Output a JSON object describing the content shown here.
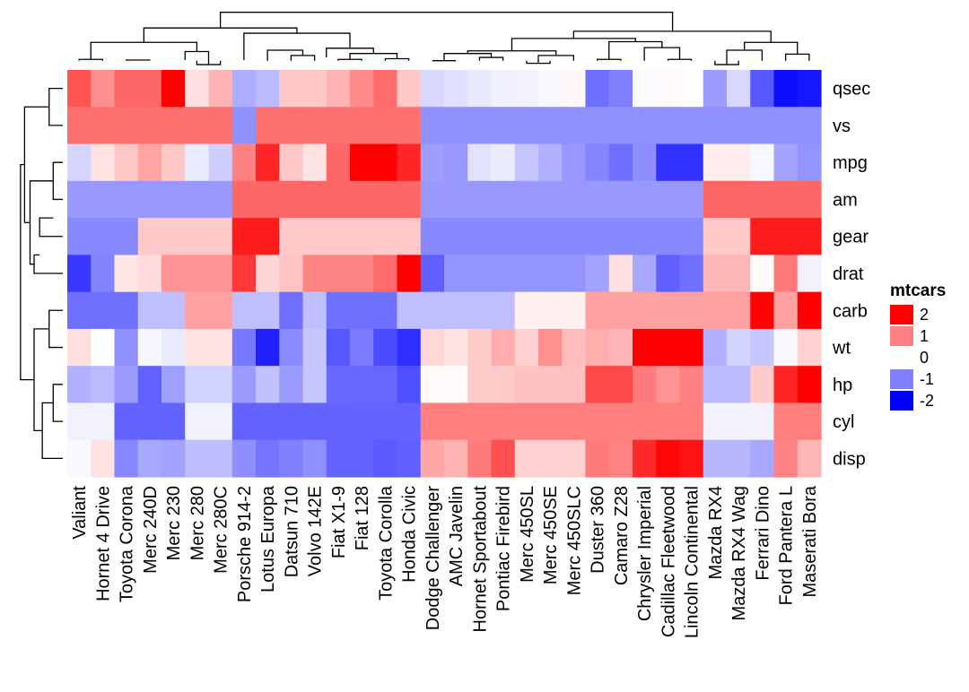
{
  "chart_data": {
    "type": "heatmap",
    "title": "",
    "legend": {
      "title": "mtcars",
      "placement": "right",
      "ticks": [
        2,
        1,
        0,
        -1,
        -2
      ],
      "tick_labels": [
        "2",
        "1",
        "0",
        "-1",
        "-2"
      ],
      "color_low": "#0000ff",
      "color_mid": "#ffffff",
      "color_high": "#ff0000",
      "range": [
        -2,
        2
      ]
    },
    "x_categories": [
      "Valiant",
      "Hornet 4 Drive",
      "Toyota Corona",
      "Merc 240D",
      "Merc 230",
      "Merc 280",
      "Merc 280C",
      "Porsche 914-2",
      "Lotus Europa",
      "Datsun 710",
      "Volvo 142E",
      "Fiat X1-9",
      "Fiat 128",
      "Toyota Corolla",
      "Honda Civic",
      "Dodge Challenger",
      "AMC Javelin",
      "Hornet Sportabout",
      "Pontiac Firebird",
      "Merc 450SL",
      "Merc 450SE",
      "Merc 450SLC",
      "Duster 360",
      "Camaro Z28",
      "Chrysler Imperial",
      "Cadillac Fleetwood",
      "Lincoln Continental",
      "Mazda RX4",
      "Mazda RX4 Wag",
      "Ferrari Dino",
      "Ford Pantera L",
      "Maserati Bora"
    ],
    "y_categories": [
      "qsec",
      "vs",
      "mpg",
      "am",
      "gear",
      "drat",
      "carb",
      "wt",
      "hp",
      "cyl",
      "disp"
    ],
    "values": [
      [
        1.33,
        0.89,
        1.2,
        1.2,
        2.83,
        0.25,
        0.59,
        -0.64,
        -0.53,
        0.43,
        0.43,
        0.59,
        0.91,
        1.15,
        0.43,
        -0.31,
        -0.25,
        -0.18,
        -0.12,
        -0.1,
        -0.06,
        0.06,
        -1.13,
        -1.0,
        -0.03,
        0.04,
        0.02,
        -0.78,
        -0.31,
        -1.31,
        -1.9,
        -1.82
      ],
      [
        1.12,
        1.12,
        1.12,
        1.12,
        1.12,
        1.12,
        1.12,
        -0.87,
        1.12,
        1.12,
        1.12,
        1.12,
        1.12,
        1.12,
        1.12,
        -0.87,
        -0.87,
        -0.87,
        -0.87,
        -0.87,
        -0.87,
        -0.87,
        -0.87,
        -0.87,
        -0.87,
        -0.87,
        -0.87,
        -0.87,
        -0.87,
        -0.87,
        -0.87,
        -0.87
      ],
      [
        -0.33,
        0.22,
        0.45,
        0.72,
        0.45,
        -0.15,
        -0.38,
        0.98,
        1.71,
        0.45,
        0.22,
        1.2,
        2.04,
        2.29,
        1.71,
        -0.76,
        -0.81,
        -0.23,
        -0.15,
        -0.46,
        -0.61,
        -0.81,
        -0.96,
        -1.13,
        -0.89,
        -1.61,
        -1.61,
        0.15,
        0.15,
        -0.06,
        -0.71,
        -0.84
      ],
      [
        -0.81,
        -0.81,
        -0.81,
        -0.81,
        -0.81,
        -0.81,
        -0.81,
        1.19,
        1.19,
        1.19,
        1.19,
        1.19,
        1.19,
        1.19,
        1.19,
        -0.81,
        -0.81,
        -0.81,
        -0.81,
        -0.81,
        -0.81,
        -0.81,
        -0.81,
        -0.81,
        -0.81,
        -0.81,
        -0.81,
        1.19,
        1.19,
        1.19,
        1.19,
        1.19
      ],
      [
        -0.93,
        -0.93,
        -0.93,
        0.42,
        0.42,
        0.42,
        0.42,
        1.78,
        1.78,
        0.42,
        0.42,
        0.42,
        0.42,
        0.42,
        0.42,
        -0.93,
        -0.93,
        -0.93,
        -0.93,
        -0.93,
        -0.93,
        -0.93,
        -0.93,
        -0.93,
        -0.93,
        -0.93,
        -0.93,
        0.42,
        0.42,
        1.78,
        1.78,
        1.78
      ],
      [
        -1.56,
        -0.97,
        0.19,
        0.28,
        0.84,
        0.84,
        0.84,
        1.56,
        0.33,
        0.47,
        0.96,
        0.96,
        0.96,
        1.17,
        2.49,
        -1.25,
        -0.84,
        -0.84,
        -0.84,
        -0.84,
        -0.84,
        -0.84,
        -0.72,
        0.24,
        -0.69,
        -1.25,
        -1.12,
        0.57,
        0.57,
        0.04,
        1.04,
        -0.1
      ],
      [
        -1.12,
        -1.12,
        -1.12,
        -0.5,
        -0.5,
        0.74,
        0.74,
        -0.5,
        -0.5,
        -1.12,
        -0.5,
        -1.12,
        -1.12,
        -1.12,
        -0.5,
        -0.5,
        -0.5,
        -0.5,
        -0.5,
        0.12,
        0.12,
        0.12,
        0.74,
        0.74,
        0.74,
        0.74,
        0.74,
        0.74,
        0.74,
        1.98,
        0.74,
        3.21
      ],
      [
        0.25,
        -0.01,
        -0.87,
        -0.07,
        -0.16,
        0.23,
        0.23,
        -1.05,
        -1.74,
        -0.92,
        -0.45,
        -1.31,
        -1.04,
        -1.41,
        -1.64,
        0.31,
        0.22,
        0.41,
        0.64,
        0.37,
        0.87,
        0.52,
        0.64,
        0.58,
        2.17,
        2.08,
        2.26,
        -0.61,
        -0.35,
        -0.45,
        -0.05,
        0.36
      ],
      [
        -0.61,
        -0.54,
        -0.78,
        -1.24,
        -0.75,
        -0.35,
        -0.35,
        -0.79,
        -0.49,
        -0.78,
        -0.45,
        -1.18,
        -1.19,
        -1.19,
        -1.38,
        0.05,
        0.05,
        0.41,
        0.41,
        0.49,
        0.49,
        0.49,
        1.43,
        1.43,
        1.04,
        0.85,
        0.99,
        -0.54,
        -0.54,
        0.41,
        1.71,
        2.75
      ],
      [
        -0.1,
        -0.1,
        -1.22,
        -1.22,
        -1.22,
        -0.1,
        -0.1,
        -1.22,
        -1.22,
        -1.22,
        -1.22,
        -1.22,
        -1.22,
        -1.22,
        -1.22,
        1.01,
        1.01,
        1.01,
        1.01,
        1.01,
        1.01,
        1.01,
        1.01,
        1.01,
        1.01,
        1.01,
        1.01,
        -0.1,
        -0.1,
        -0.1,
        1.01,
        1.01
      ],
      [
        -0.05,
        0.22,
        -0.93,
        -0.68,
        -0.72,
        -0.51,
        -0.51,
        -0.89,
        -1.09,
        -0.99,
        -0.88,
        -1.22,
        -1.23,
        -1.29,
        -1.25,
        0.7,
        0.59,
        1.04,
        1.37,
        0.37,
        0.37,
        0.37,
        1.04,
        0.97,
        1.68,
        1.95,
        1.85,
        -0.57,
        -0.57,
        -0.69,
        0.97,
        0.57
      ]
    ],
    "col_dendrogram": [
      [
        1,
        2,
        0.5,
        0.5,
        0.6
      ],
      [
        3,
        4,
        0.5,
        0.5,
        0.55
      ],
      [
        6,
        7,
        0.5,
        0.5,
        0.2
      ],
      [
        5.5,
        6.5,
        0.55,
        0.2,
        1.2
      ],
      [
        1.5,
        6,
        0.6,
        1.2,
        1.9
      ],
      [
        10,
        11,
        0.5,
        0.5,
        0.9
      ],
      [
        9,
        10.5,
        0.5,
        0.9,
        1.3
      ],
      [
        12,
        13,
        0.5,
        0.5,
        0.6
      ],
      [
        14,
        15,
        0.5,
        0.5,
        0.65
      ],
      [
        12.5,
        14.5,
        0.6,
        0.65,
        1.05
      ],
      [
        11.5,
        13.5,
        0.75,
        1.05,
        1.45
      ],
      [
        8,
        12.5,
        0.55,
        1.45,
        2.6
      ],
      [
        3.75,
        10.25,
        1.9,
        2.6,
        3.0
      ],
      [
        16,
        17,
        0.5,
        0.5,
        0.5
      ],
      [
        18,
        19,
        0.5,
        0.5,
        0.75
      ],
      [
        16.5,
        18.5,
        0.5,
        0.75,
        1.05
      ],
      [
        20,
        21,
        0.5,
        0.5,
        0.3
      ],
      [
        20.5,
        22,
        0.3,
        0.5,
        0.9
      ],
      [
        17.5,
        21.25,
        1.05,
        0.9,
        1.25
      ],
      [
        23,
        24,
        0.5,
        0.5,
        0.6
      ],
      [
        26,
        27,
        0.5,
        0.5,
        0.6
      ],
      [
        25,
        26.5,
        0.5,
        0.6,
        1.5
      ],
      [
        23.5,
        25.75,
        0.6,
        1.5,
        1.95
      ],
      [
        19.375,
        24.625,
        1.25,
        1.95,
        2.2
      ],
      [
        28,
        29,
        0.5,
        0.5,
        0.2
      ],
      [
        28.5,
        30,
        0.2,
        0.5,
        1.3
      ],
      [
        31,
        32,
        0.5,
        0.5,
        1.0
      ],
      [
        29.25,
        31.5,
        1.3,
        1.0,
        1.9
      ],
      [
        22,
        30.375,
        2.2,
        1.9,
        2.75
      ],
      [
        7,
        26.2,
        3.0,
        2.75,
        4.2
      ]
    ],
    "row_dendrogram": [
      [
        1,
        2,
        0.2,
        0.2,
        1.2
      ],
      [
        3,
        4,
        0.2,
        0.2,
        0.9
      ],
      [
        4.5,
        5,
        0.9,
        0.2,
        1.9
      ],
      [
        5.5,
        6,
        1.9,
        0.2,
        2.3
      ],
      [
        3.5,
        5.75,
        0.9,
        2.3,
        2.6
      ],
      [
        1.5,
        4.625,
        1.2,
        2.6,
        3.0
      ],
      [
        7,
        8,
        0.2,
        0.2,
        1.2
      ],
      [
        9,
        10,
        0.2,
        0.2,
        0.9
      ],
      [
        9.5,
        11,
        0.9,
        0.2,
        1.7
      ],
      [
        7.5,
        10.25,
        1.2,
        1.7,
        2.3
      ],
      [
        3.06,
        8.875,
        3.0,
        2.3,
        3.3
      ]
    ]
  }
}
